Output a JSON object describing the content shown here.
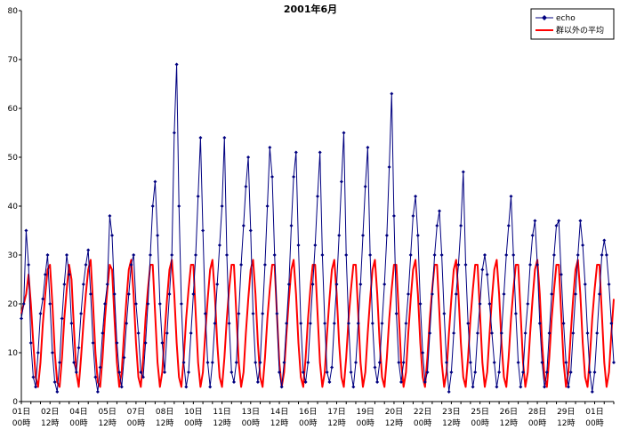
{
  "chart_data": {
    "type": "line",
    "title": "2001年6月",
    "xlabel": "",
    "ylabel": "",
    "ylim": [
      0,
      80
    ],
    "yticks": [
      0,
      10,
      20,
      30,
      40,
      50,
      60,
      70,
      80
    ],
    "grid": false,
    "legend_position": "top-right",
    "x_ticks": [
      {
        "day": "01日",
        "hour": "00時"
      },
      {
        "day": "02日",
        "hour": "12時"
      },
      {
        "day": "04日",
        "hour": "00時"
      },
      {
        "day": "05日",
        "hour": "12時"
      },
      {
        "day": "07日",
        "hour": "00時"
      },
      {
        "day": "08日",
        "hour": "12時"
      },
      {
        "day": "10日",
        "hour": "00時"
      },
      {
        "day": "11日",
        "hour": "12時"
      },
      {
        "day": "13日",
        "hour": "00時"
      },
      {
        "day": "14日",
        "hour": "12時"
      },
      {
        "day": "16日",
        "hour": "00時"
      },
      {
        "day": "17日",
        "hour": "12時"
      },
      {
        "day": "19日",
        "hour": "00時"
      },
      {
        "day": "20日",
        "hour": "12時"
      },
      {
        "day": "22日",
        "hour": "00時"
      },
      {
        "day": "23日",
        "hour": "12時"
      },
      {
        "day": "25日",
        "hour": "00時"
      },
      {
        "day": "26日",
        "hour": "12時"
      },
      {
        "day": "28日",
        "hour": "00時"
      },
      {
        "day": "29日",
        "hour": "12時"
      },
      {
        "day": "01日",
        "hour": "00時"
      }
    ],
    "x_range_hours": [
      0,
      744
    ],
    "series": [
      {
        "name": "echo",
        "color": "#000080",
        "marker": "diamond",
        "hour_step": 3,
        "values": [
          17,
          20,
          35,
          28,
          12,
          5,
          3,
          10,
          18,
          21,
          26,
          30,
          20,
          10,
          4,
          2,
          8,
          17,
          24,
          30,
          26,
          16,
          8,
          6,
          11,
          18,
          24,
          28,
          31,
          22,
          12,
          5,
          2,
          7,
          14,
          20,
          24,
          38,
          34,
          22,
          12,
          6,
          3,
          9,
          16,
          22,
          28,
          30,
          20,
          14,
          6,
          5,
          12,
          20,
          30,
          40,
          45,
          34,
          20,
          12,
          6,
          14,
          22,
          30,
          55,
          69,
          40,
          20,
          8,
          3,
          6,
          14,
          22,
          30,
          42,
          54,
          35,
          18,
          8,
          3,
          8,
          16,
          24,
          32,
          40,
          54,
          30,
          16,
          6,
          4,
          8,
          18,
          28,
          36,
          44,
          50,
          35,
          18,
          8,
          4,
          8,
          18,
          28,
          40,
          52,
          46,
          30,
          18,
          6,
          3,
          8,
          16,
          24,
          36,
          46,
          51,
          32,
          16,
          6,
          4,
          8,
          16,
          24,
          32,
          42,
          51,
          30,
          16,
          6,
          4,
          7,
          16,
          24,
          34,
          45,
          55,
          30,
          16,
          6,
          3,
          8,
          16,
          24,
          34,
          44,
          52,
          30,
          16,
          7,
          4,
          8,
          16,
          24,
          34,
          48,
          63,
          38,
          18,
          8,
          4,
          8,
          16,
          22,
          30,
          38,
          42,
          34,
          20,
          10,
          4,
          6,
          14,
          22,
          30,
          36,
          39,
          30,
          18,
          8,
          2,
          6,
          14,
          22,
          28,
          36,
          47,
          28,
          16,
          8,
          3,
          6,
          14,
          20,
          27,
          30,
          26,
          20,
          14,
          8,
          3,
          6,
          14,
          22,
          30,
          36,
          42,
          30,
          18,
          8,
          3,
          6,
          14,
          20,
          28,
          34,
          37,
          28,
          16,
          8,
          3,
          6,
          14,
          22,
          30,
          36,
          37,
          26,
          16,
          8,
          3,
          6,
          14,
          22,
          30,
          37,
          32,
          24,
          14,
          6,
          2,
          6,
          14,
          22,
          30,
          33,
          30,
          24,
          16,
          8,
          3,
          6,
          14,
          22,
          30,
          33,
          30,
          24,
          16,
          8,
          3,
          6,
          14,
          20,
          28,
          32,
          28,
          22,
          14,
          7,
          3,
          6,
          12,
          20,
          28,
          30,
          28,
          22,
          14,
          6,
          2,
          6,
          14,
          22,
          28,
          32,
          28,
          20,
          12,
          6,
          2,
          6,
          12,
          20,
          28,
          29,
          28,
          22,
          14,
          6,
          2,
          6,
          12,
          20,
          28,
          32,
          26,
          20,
          12
        ]
      },
      {
        "name": "群以外の平均",
        "color": "#ff0000",
        "marker": "none",
        "hour_step": 3,
        "values": [
          18,
          20,
          22,
          26,
          20,
          12,
          5,
          3,
          8,
          16,
          22,
          27,
          28,
          20,
          10,
          4,
          3,
          9,
          17,
          23,
          28,
          25,
          15,
          6,
          3,
          9,
          16,
          22,
          27,
          29,
          20,
          10,
          4,
          3,
          9,
          17,
          23,
          28,
          27,
          17,
          8,
          3,
          6,
          14,
          21,
          27,
          29,
          22,
          12,
          5,
          3,
          9,
          17,
          23,
          28,
          28,
          18,
          8,
          3,
          6,
          14,
          21,
          27,
          29,
          22,
          12,
          5,
          3,
          9,
          17,
          23,
          28,
          28,
          18,
          8,
          3,
          6,
          14,
          21,
          27,
          29,
          22,
          12,
          5,
          3,
          9,
          17,
          23,
          28,
          28,
          18,
          8,
          3,
          6,
          14,
          21,
          27,
          29,
          22,
          12,
          5,
          3,
          9,
          17,
          23,
          28,
          28,
          18,
          8,
          3,
          6,
          14,
          21,
          27,
          29,
          22,
          12,
          5,
          3,
          9,
          17,
          23,
          28,
          28,
          18,
          8,
          3,
          6,
          14,
          21,
          27,
          29,
          22,
          12,
          5,
          3,
          9,
          17,
          23,
          28,
          28,
          18,
          8,
          3,
          6,
          14,
          21,
          27,
          29,
          22,
          12,
          5,
          3,
          9,
          17,
          23,
          28,
          28,
          18,
          8,
          3,
          6,
          14,
          21,
          27,
          29,
          22,
          12,
          5,
          3,
          9,
          17,
          23,
          28,
          28,
          18,
          8,
          3,
          6,
          14,
          21,
          27,
          29,
          22,
          12,
          5,
          3,
          9,
          17,
          23,
          28,
          28,
          18,
          8,
          3,
          6,
          14,
          21,
          27,
          29,
          22,
          12,
          5,
          3,
          9,
          17,
          23,
          28,
          28,
          18,
          8,
          3,
          6,
          14,
          21,
          27,
          29,
          22,
          12,
          5,
          3,
          9,
          17,
          23,
          28,
          28,
          18,
          8,
          3,
          6,
          14,
          21,
          27,
          29,
          22,
          12,
          5,
          3,
          9,
          17,
          23,
          28,
          28,
          18,
          8,
          3,
          6,
          14,
          21,
          27,
          29,
          22,
          12,
          5,
          3,
          9,
          17,
          23,
          28,
          28,
          18,
          8,
          3,
          6,
          14,
          21,
          27,
          29,
          22,
          12,
          5,
          3,
          9,
          17,
          23,
          28,
          28,
          18,
          8,
          3,
          6,
          14,
          21,
          27,
          29,
          22,
          12,
          5,
          3,
          9,
          17,
          23,
          28,
          28,
          18,
          8,
          3,
          6,
          14,
          21,
          27,
          29,
          22,
          12,
          5,
          3,
          9,
          17,
          23,
          28,
          28,
          18,
          8
        ]
      }
    ]
  }
}
